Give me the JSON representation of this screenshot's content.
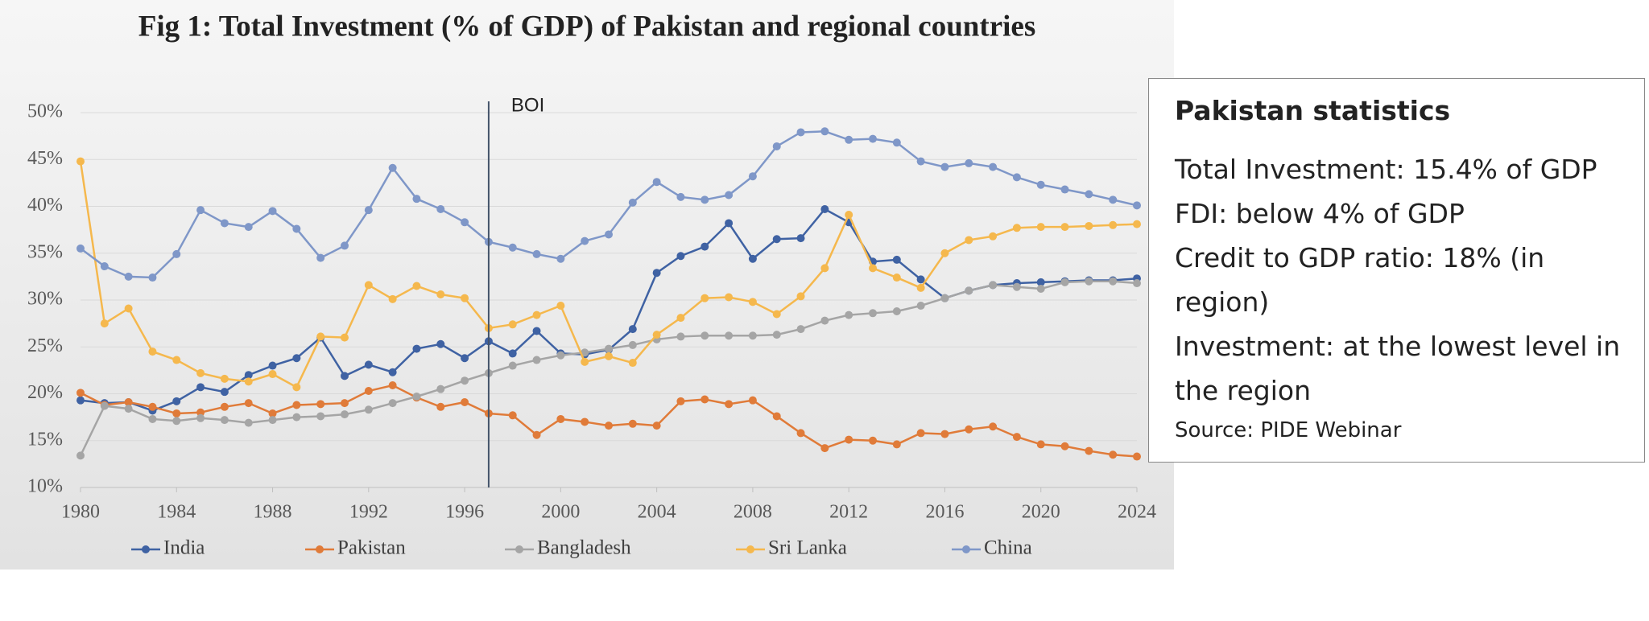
{
  "chart_data": {
    "type": "line",
    "title": "Fig 1: Total Investment (% of GDP) of Pakistan and regional countries",
    "x": [
      1980,
      1981,
      1982,
      1983,
      1984,
      1985,
      1986,
      1987,
      1988,
      1989,
      1990,
      1991,
      1992,
      1993,
      1994,
      1995,
      1996,
      1997,
      1998,
      1999,
      2000,
      2001,
      2002,
      2003,
      2004,
      2005,
      2006,
      2007,
      2008,
      2009,
      2010,
      2011,
      2012,
      2013,
      2014,
      2015,
      2016,
      2017,
      2018,
      2019,
      2020,
      2021,
      2022,
      2023,
      2024
    ],
    "series": [
      {
        "name": "India",
        "color": "#3f62a3",
        "values": [
          19.3,
          19,
          19.1,
          18.2,
          19.2,
          20.7,
          20.2,
          22,
          23,
          23.8,
          26,
          21.9,
          23.1,
          22.3,
          24.8,
          25.3,
          23.8,
          25.6,
          24.3,
          26.7,
          24.3,
          24.2,
          24.7,
          26.9,
          32.9,
          34.7,
          35.7,
          38.2,
          34.4,
          36.5,
          36.6,
          39.7,
          38.3,
          34.1,
          34.3,
          32.2,
          30.2,
          31,
          31.6,
          31.8,
          31.9,
          32,
          32.1,
          32.1,
          32.3
        ]
      },
      {
        "name": "Pakistan",
        "color": "#e07b39",
        "values": [
          20.1,
          18.8,
          19.1,
          18.6,
          17.9,
          18,
          18.6,
          19,
          17.9,
          18.8,
          18.9,
          19,
          20.3,
          20.9,
          19.6,
          18.6,
          19.1,
          17.9,
          17.7,
          15.6,
          17.3,
          17,
          16.6,
          16.8,
          16.6,
          19.2,
          19.4,
          18.9,
          19.3,
          17.6,
          15.8,
          14.2,
          15.1,
          15,
          14.6,
          15.8,
          15.7,
          16.2,
          16.5,
          15.4,
          14.6,
          14.4,
          13.9,
          13.5,
          13.3
        ]
      },
      {
        "name": "Bangladesh",
        "color": "#a5a5a5",
        "values": [
          13.4,
          18.7,
          18.4,
          17.3,
          17.1,
          17.4,
          17.2,
          16.9,
          17.2,
          17.5,
          17.6,
          17.8,
          18.3,
          19,
          19.7,
          20.5,
          21.4,
          22.2,
          23,
          23.6,
          24.1,
          24.4,
          24.8,
          25.2,
          25.8,
          26.1,
          26.2,
          26.2,
          26.2,
          26.3,
          26.9,
          27.8,
          28.4,
          28.6,
          28.8,
          29.4,
          30.2,
          31,
          31.6,
          31.4,
          31.2,
          31.9,
          32,
          32,
          31.8
        ]
      },
      {
        "name": "Sri Lanka",
        "color": "#f5b84d",
        "values": [
          44.8,
          27.5,
          29.1,
          24.5,
          23.6,
          22.2,
          21.6,
          21.3,
          22.1,
          20.7,
          26.1,
          26,
          31.6,
          30.1,
          31.5,
          30.6,
          30.2,
          27,
          27.4,
          28.4,
          29.4,
          23.4,
          24,
          23.3,
          26.3,
          28.1,
          30.2,
          30.3,
          29.8,
          28.5,
          30.4,
          33.4,
          39.1,
          33.4,
          32.4,
          31.3,
          35,
          36.4,
          36.8,
          37.7,
          37.8,
          37.8,
          37.9,
          38,
          38.1
        ]
      },
      {
        "name": "China",
        "color": "#7f97c8",
        "values": [
          35.5,
          33.6,
          32.5,
          32.4,
          34.9,
          39.6,
          38.2,
          37.8,
          39.5,
          37.6,
          34.5,
          35.8,
          39.6,
          44.1,
          40.8,
          39.7,
          38.3,
          36.2,
          35.6,
          34.9,
          34.4,
          36.3,
          37,
          40.4,
          42.6,
          41,
          40.7,
          41.2,
          43.2,
          46.4,
          47.9,
          48,
          47.1,
          47.2,
          46.8,
          44.8,
          44.2,
          44.6,
          44.2,
          43.1,
          42.3,
          41.8,
          41.3,
          40.7,
          40.1
        ]
      }
    ],
    "xlim": [
      1980,
      2024
    ],
    "xticks": [
      1980,
      1984,
      1988,
      1992,
      1996,
      2000,
      2004,
      2008,
      2012,
      2016,
      2020,
      2024
    ],
    "ylim": [
      10,
      50
    ],
    "yticks": [
      {
        "value": 10,
        "label": "10%"
      },
      {
        "value": 15,
        "label": "15%"
      },
      {
        "value": 20,
        "label": "20%"
      },
      {
        "value": 25,
        "label": "25%"
      },
      {
        "value": 30,
        "label": "30%"
      },
      {
        "value": 35,
        "label": "35%"
      },
      {
        "value": 40,
        "label": "40%"
      },
      {
        "value": 45,
        "label": "45%"
      },
      {
        "value": 50,
        "label": "50%"
      }
    ],
    "annotations": [
      {
        "text": "BOI",
        "x": 1997
      }
    ],
    "legend": "bottom"
  },
  "panel": {
    "title": "Pakistan statistics",
    "lines": [
      "Total Investment: 15.4% of GDP",
      "FDI: below 4% of GDP",
      "Credit to GDP ratio: 18% (in region)",
      "Investment: at the lowest level in the region"
    ],
    "source": "Source: PIDE Webinar"
  }
}
